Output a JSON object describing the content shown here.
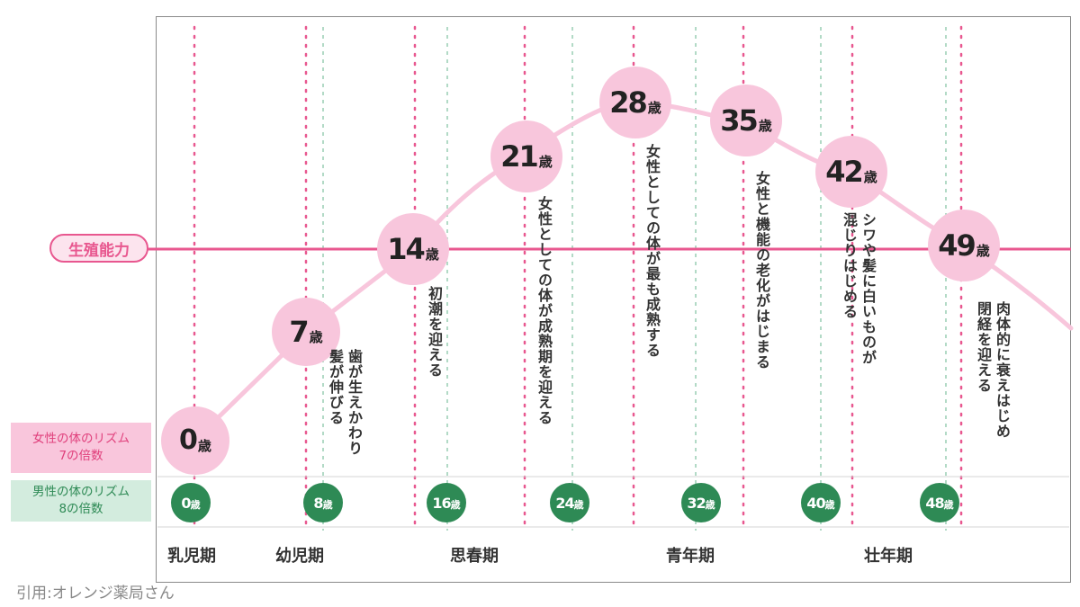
{
  "fertility_label": "生殖能力",
  "legend": {
    "female_title": "女性の体のリズム",
    "female_sub": "7の倍数",
    "male_title": "男性の体のリズム",
    "male_sub": "8の倍数"
  },
  "female_ages": [
    {
      "num": "0",
      "unit": "歳"
    },
    {
      "num": "7",
      "unit": "歳"
    },
    {
      "num": "14",
      "unit": "歳"
    },
    {
      "num": "21",
      "unit": "歳"
    },
    {
      "num": "28",
      "unit": "歳"
    },
    {
      "num": "35",
      "unit": "歳"
    },
    {
      "num": "42",
      "unit": "歳"
    },
    {
      "num": "49",
      "unit": "歳"
    }
  ],
  "male_ages": [
    {
      "num": "0",
      "unit": "歳"
    },
    {
      "num": "8",
      "unit": "歳"
    },
    {
      "num": "16",
      "unit": "歳"
    },
    {
      "num": "24",
      "unit": "歳"
    },
    {
      "num": "32",
      "unit": "歳"
    },
    {
      "num": "40",
      "unit": "歳"
    },
    {
      "num": "48",
      "unit": "歳"
    }
  ],
  "annotations": {
    "age7": [
      "歯が生えかわり",
      "髪が伸びる"
    ],
    "age14": [
      "初潮を迎える"
    ],
    "age21": [
      "女性としての体が成熟期を迎える"
    ],
    "age28": [
      "女性としての体が最も成熟する"
    ],
    "age35": [
      "女性と機能の老化がはじまる"
    ],
    "age42": [
      "シワや髪に白いものが",
      "混じりはじめる"
    ],
    "age49": [
      "肉体的に衰えはじめ",
      "閉経を迎える"
    ]
  },
  "periods": [
    "乳児期",
    "幼児期",
    "思春期",
    "青年期",
    "壮年期"
  ],
  "citation": "引用:オレンジ薬局さん",
  "colors": {
    "female_pink": "#f8c6dc",
    "accent_pink": "#e8578f",
    "male_green": "#2e8a55"
  }
}
